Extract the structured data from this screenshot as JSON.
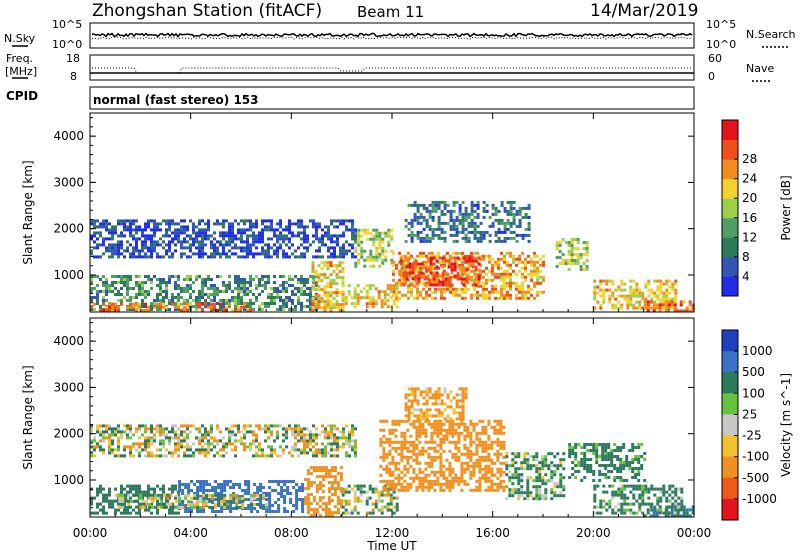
{
  "header": {
    "title": "Zhongshan Station (fitACF)",
    "beam": "Beam 11",
    "date": "14/Mar/2019"
  },
  "sky_panel": {
    "left_label": "N.Sky",
    "left_ticks": [
      "10^5",
      "10^0"
    ],
    "right_label": "N.Search",
    "right_ticks": [
      "10^5",
      "10^0"
    ]
  },
  "freq_panel": {
    "left_label_1": "Freq.",
    "left_label_2": "[MHz]",
    "left_ticks": [
      "18",
      "8"
    ],
    "right_label": "Nave",
    "right_ticks": [
      "60",
      "0"
    ]
  },
  "cpid": {
    "label": "CPID",
    "mode": "normal (fast stereo) 153"
  },
  "x_axis": {
    "label": "Time UT",
    "ticks": [
      "00:00",
      "04:00",
      "08:00",
      "12:00",
      "16:00",
      "20:00",
      "00:00"
    ]
  },
  "chart_data": [
    {
      "type": "heatmap",
      "title": "",
      "xlabel": "Time UT",
      "ylabel": "Slant Range [km]",
      "x_range": [
        0,
        24
      ],
      "ylim": [
        200,
        4500
      ],
      "y_ticks": [
        1000,
        2000,
        3000,
        4000
      ],
      "colorbar": {
        "label": "Power [dB]",
        "ticks": [
          "4",
          "8",
          "12",
          "16",
          "20",
          "24",
          "28"
        ],
        "colors": [
          "#1f2ee6",
          "#3356b5",
          "#2e7a5c",
          "#4f9e66",
          "#9ad04a",
          "#f2d22b",
          "#f28c1f",
          "#ef4f1c",
          "#e4141c"
        ]
      },
      "regions": [
        {
          "t0": 0.0,
          "t1": 9.0,
          "r0": 250,
          "r1": 1000,
          "v": 12
        },
        {
          "t0": 0.0,
          "t1": 6.5,
          "r0": 250,
          "r1": 400,
          "v": 26
        },
        {
          "t0": 0.0,
          "t1": 10.5,
          "r0": 1400,
          "r1": 2200,
          "v": 6
        },
        {
          "t0": 8.8,
          "t1": 10.0,
          "r0": 250,
          "r1": 1300,
          "v": 22
        },
        {
          "t0": 10.0,
          "t1": 12.2,
          "r0": 300,
          "r1": 800,
          "v": 22
        },
        {
          "t0": 10.5,
          "t1": 12.0,
          "r0": 1200,
          "r1": 2000,
          "v": 18
        },
        {
          "t0": 12.0,
          "t1": 18.0,
          "r0": 500,
          "r1": 1500,
          "v": 24
        },
        {
          "t0": 12.3,
          "t1": 15.5,
          "r0": 800,
          "r1": 1400,
          "v": 28
        },
        {
          "t0": 12.5,
          "t1": 17.5,
          "r0": 1700,
          "r1": 2600,
          "v": 10
        },
        {
          "t0": 18.5,
          "t1": 19.8,
          "r0": 1100,
          "r1": 1800,
          "v": 18
        },
        {
          "t0": 20.0,
          "t1": 23.3,
          "r0": 300,
          "r1": 900,
          "v": 22
        },
        {
          "t0": 22.0,
          "t1": 24.0,
          "r0": 250,
          "r1": 450,
          "v": 27
        }
      ]
    },
    {
      "type": "heatmap",
      "title": "",
      "xlabel": "Time UT",
      "ylabel": "Slant Range [km]",
      "x_range": [
        0,
        24
      ],
      "ylim": [
        200,
        4500
      ],
      "y_ticks": [
        1000,
        2000,
        3000,
        4000
      ],
      "colorbar": {
        "label": "Velocity [m s^-1]",
        "ticks": [
          "1000",
          "500",
          "100",
          "25",
          "-25",
          "-100",
          "-500",
          "-1000"
        ],
        "colors": [
          "#1f3fbf",
          "#3a73c4",
          "#2e7a5c",
          "#67c33f",
          "#c8c8c8",
          "#f2c12b",
          "#f0901e",
          "#ef5a1a",
          "#e4141c"
        ]
      },
      "regions": [
        {
          "t0": 0.0,
          "t1": 10.5,
          "r0": 1500,
          "r1": 2200,
          "v": 0
        },
        {
          "t0": 0.0,
          "t1": 3.5,
          "r0": 300,
          "r1": 900,
          "v": 300
        },
        {
          "t0": 3.5,
          "t1": 8.5,
          "r0": 300,
          "r1": 1000,
          "v": 800
        },
        {
          "t0": 1.0,
          "t1": 7.0,
          "r0": 400,
          "r1": 700,
          "v": 60
        },
        {
          "t0": 8.5,
          "t1": 10.0,
          "r0": 250,
          "r1": 1300,
          "v": -300
        },
        {
          "t0": 10.0,
          "t1": 12.2,
          "r0": 300,
          "r1": 900,
          "v": 50
        },
        {
          "t0": 11.5,
          "t1": 16.5,
          "r0": 800,
          "r1": 2300,
          "v": -300
        },
        {
          "t0": 12.5,
          "t1": 15.0,
          "r0": 2300,
          "r1": 3000,
          "v": -200
        },
        {
          "t0": 16.5,
          "t1": 18.8,
          "r0": 600,
          "r1": 1600,
          "v": 150
        },
        {
          "t0": 19.0,
          "t1": 22.0,
          "r0": 1000,
          "r1": 1800,
          "v": 250
        },
        {
          "t0": 20.0,
          "t1": 23.5,
          "r0": 300,
          "r1": 900,
          "v": 200
        },
        {
          "t0": 22.0,
          "t1": 24.0,
          "r0": 250,
          "r1": 450,
          "v": 400
        }
      ]
    }
  ]
}
